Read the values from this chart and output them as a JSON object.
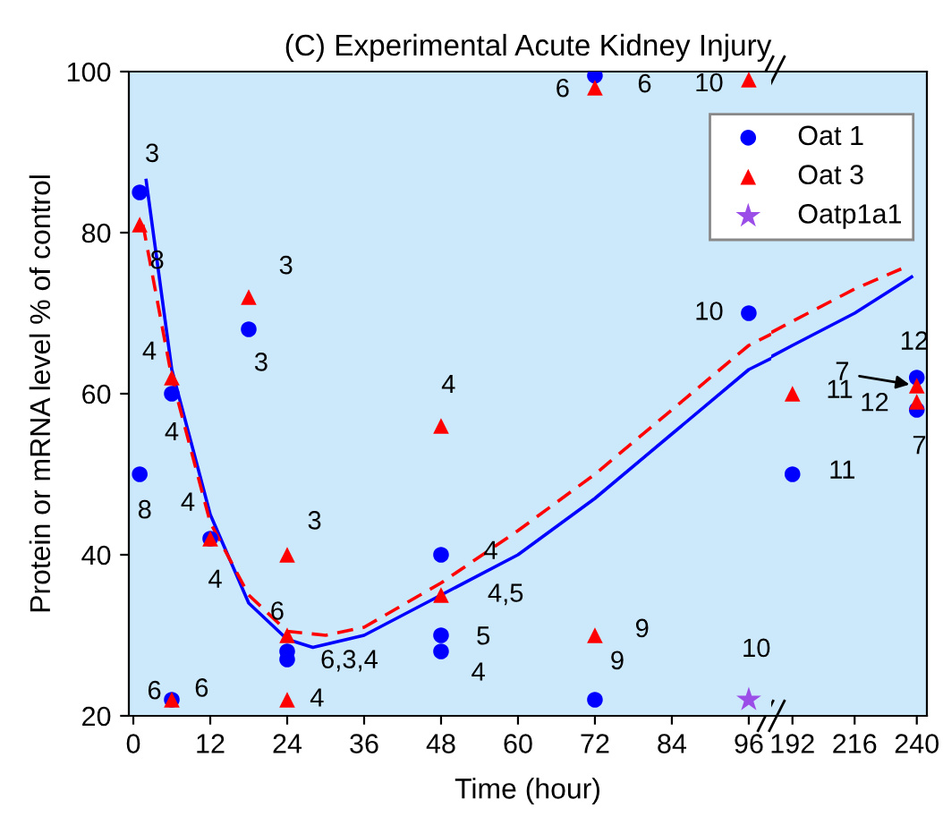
{
  "chart_data": [
    {
      "type": "scatter",
      "title": "(C) Experimental Acute Kidney Injury",
      "xlabel": "Time (hour)",
      "ylabel": "Protein or mRNA level % of control",
      "xlim": [
        -0.7,
        99.5
      ],
      "ylim": [
        20,
        100
      ],
      "xticks": [
        0,
        12,
        24,
        36,
        48,
        60,
        72,
        84,
        96
      ],
      "yticks": [
        20,
        40,
        60,
        80,
        100
      ],
      "grid": false,
      "legend": "top right",
      "series": [
        {
          "name": "Oat 1",
          "marker": "circle",
          "color": "#0000ff",
          "x": [
            1,
            1,
            6,
            6,
            12,
            18,
            24,
            24,
            48,
            48,
            48,
            72,
            72,
            96
          ],
          "values": [
            85,
            50,
            60,
            22,
            42,
            68,
            28,
            27,
            40,
            30,
            28,
            22,
            99.5,
            70
          ]
        },
        {
          "name": "Oat 3",
          "marker": "triangle",
          "color": "#ff0000",
          "x": [
            1,
            6,
            6,
            12,
            18,
            24,
            24,
            24,
            48,
            48,
            72,
            72,
            96
          ],
          "values": [
            81,
            62,
            22,
            42,
            72,
            40,
            30,
            22,
            56,
            35,
            98,
            30,
            99
          ]
        },
        {
          "name": "Oatp1a1",
          "marker": "star",
          "color": "#9b4de8",
          "x": [
            96
          ],
          "values": [
            22
          ]
        },
        {
          "type": "line",
          "line_style": "solid",
          "color": "#0000ff",
          "x": [
            2,
            6,
            12,
            18,
            24,
            28,
            36,
            48,
            60,
            72,
            84,
            96,
            99.5
          ],
          "values": [
            86.5,
            63,
            45,
            34,
            29.5,
            28.5,
            30,
            35,
            40,
            47,
            55,
            63,
            64.4
          ]
        },
        {
          "type": "line",
          "line_style": "dashed",
          "color": "#ff0000",
          "x": [
            1.5,
            6,
            12,
            18,
            24,
            30,
            36,
            48,
            60,
            72,
            84,
            96,
            99.5
          ],
          "values": [
            81,
            62,
            44,
            35,
            30.5,
            30,
            31,
            36.5,
            43,
            50,
            58,
            66,
            67.4
          ]
        }
      ],
      "annotations": [
        {
          "text": "3",
          "x": 1,
          "y": 85
        },
        {
          "text": "8",
          "x": 1,
          "y": 81
        },
        {
          "text": "4",
          "x": 6,
          "y": 62
        },
        {
          "text": "4",
          "x": 6,
          "y": 60
        },
        {
          "text": "8",
          "x": 1,
          "y": 50
        },
        {
          "text": "4",
          "x": 12,
          "y": 42
        },
        {
          "text": "4",
          "x": 12,
          "y": 42
        },
        {
          "text": "3",
          "x": 18,
          "y": 72
        },
        {
          "text": "3",
          "x": 18,
          "y": 68
        },
        {
          "text": "6",
          "x": 24,
          "y": 30
        },
        {
          "text": "6,3,4",
          "x": 24,
          "y": 28
        },
        {
          "text": "3",
          "x": 24,
          "y": 40
        },
        {
          "text": "4",
          "x": 24,
          "y": 22
        },
        {
          "text": "6",
          "x": 6,
          "y": 22
        },
        {
          "text": "6",
          "x": 6,
          "y": 22
        },
        {
          "text": "4",
          "x": 48,
          "y": 56
        },
        {
          "text": "4",
          "x": 48,
          "y": 40
        },
        {
          "text": "4,5",
          "x": 48,
          "y": 35
        },
        {
          "text": "5",
          "x": 48,
          "y": 30
        },
        {
          "text": "4",
          "x": 48,
          "y": 28
        },
        {
          "text": "9",
          "x": 72,
          "y": 30
        },
        {
          "text": "9",
          "x": 72,
          "y": 22
        },
        {
          "text": "10",
          "x": 96,
          "y": 22
        },
        {
          "text": "6",
          "x": 72,
          "y": 98
        },
        {
          "text": "6",
          "x": 72,
          "y": 99.5
        },
        {
          "text": "10",
          "x": 96,
          "y": 99
        },
        {
          "text": "10",
          "x": 96,
          "y": 70
        }
      ]
    },
    {
      "type": "scatter",
      "xlim": [
        183.8,
        243.9
      ],
      "ylim": [
        20,
        100
      ],
      "xticks": [
        192,
        216,
        240
      ],
      "yticks": [
        20,
        40,
        60,
        80,
        100
      ],
      "grid": false,
      "tick_labels": "x",
      "series": [
        {
          "marker": "circle",
          "color": "#0000ff",
          "x": [
            192,
            240,
            240
          ],
          "values": [
            50,
            62,
            58
          ]
        },
        {
          "marker": "triangle",
          "color": "#ff0000",
          "x": [
            192,
            240,
            240
          ],
          "values": [
            60,
            61,
            59
          ]
        },
        {
          "type": "line",
          "line_style": "solid",
          "color": "#0000ff",
          "x": [
            183.8,
            192,
            216,
            238
          ],
          "values": [
            64.6,
            66,
            70,
            74.5
          ]
        },
        {
          "type": "line",
          "line_style": "dashed",
          "color": "#ff0000",
          "x": [
            183.8,
            192,
            216,
            234
          ],
          "values": [
            67.6,
            69,
            73,
            75.5
          ]
        }
      ],
      "annotations": [
        {
          "text": "11",
          "x": 192,
          "y": 60
        },
        {
          "text": "11",
          "x": 192,
          "y": 50
        },
        {
          "text": "12",
          "x": 240,
          "y": 62
        },
        {
          "text": "7",
          "x": 240,
          "y": 61
        },
        {
          "text": "12",
          "x": 240,
          "y": 59
        },
        {
          "text": "7",
          "x": 240,
          "y": 58
        }
      ]
    }
  ]
}
